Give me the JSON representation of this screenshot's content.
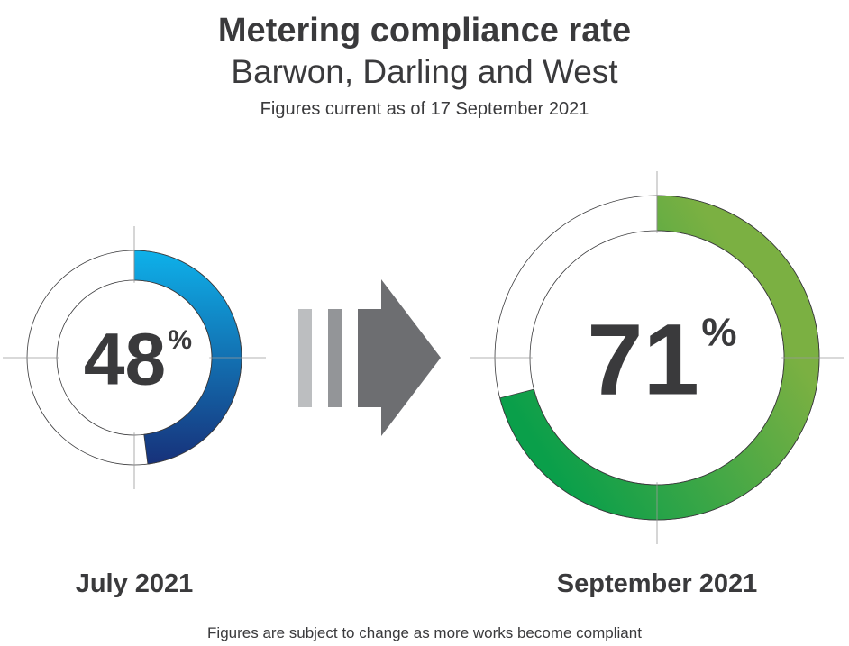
{
  "title": "Metering compliance rate",
  "subtitle": "Barwon, Darling and West",
  "note": "Figures current as of 17 September 2021",
  "footer": "Figures are subject to change as more works become compliant",
  "colors": {
    "text": "#3a3a3c",
    "july_start": "#0eb1ea",
    "july_end": "#17317a",
    "september_start": "#7bb042",
    "september_end": "#0a9f4a",
    "arrow": "#6d6e71",
    "arrow_bar_light": "#bcbec0",
    "arrow_bar_mid": "#939598"
  },
  "icons": {
    "arrow": "right-arrow-icon"
  },
  "chart_data": {
    "type": "pie",
    "series": [
      {
        "name": "July 2021",
        "label": "July 2021",
        "value": 48,
        "display": "48",
        "unit": "%"
      },
      {
        "name": "September 2021",
        "label": "September 2021",
        "value": 71,
        "display": "71",
        "unit": "%"
      }
    ]
  }
}
